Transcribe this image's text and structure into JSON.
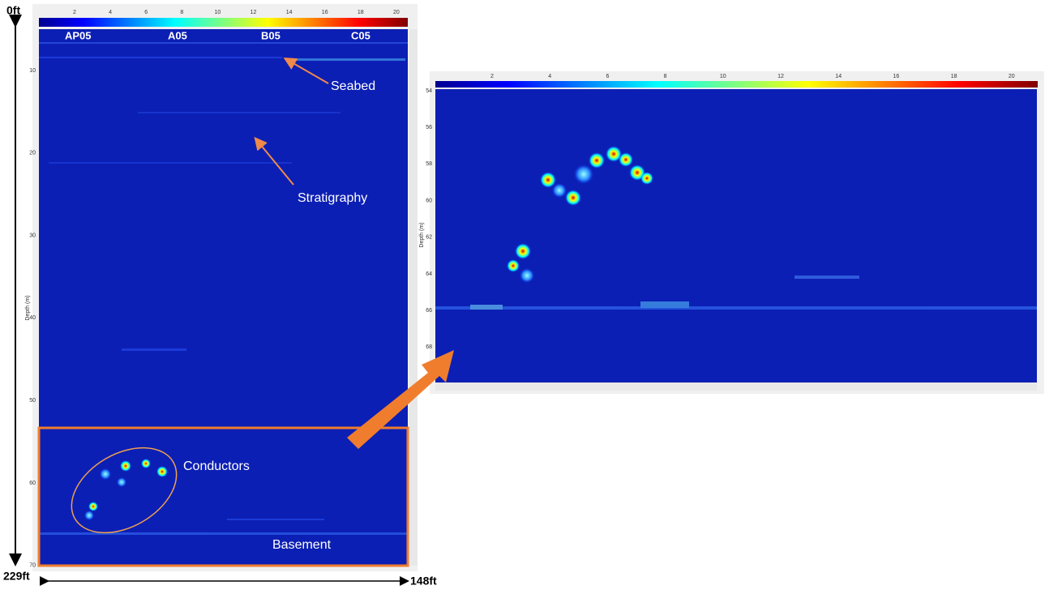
{
  "left_panel": {
    "colorbar_ticks": [
      2,
      4,
      6,
      8,
      10,
      12,
      14,
      16,
      18,
      20
    ],
    "depth_ticks": [
      10,
      20,
      30,
      40,
      50,
      60,
      70
    ],
    "axis_label": "Depth (m)",
    "line_labels": [
      "AP05",
      "A05",
      "B05",
      "C05"
    ],
    "annotations": {
      "seabed": "Seabed",
      "stratigraphy": "Stratigraphy",
      "conductors": "Conductors",
      "basement": "Basement"
    }
  },
  "right_panel": {
    "colorbar_ticks": [
      2,
      4,
      6,
      8,
      10,
      12,
      14,
      16,
      18,
      20
    ],
    "depth_ticks": [
      54,
      56,
      58,
      60,
      62,
      64,
      66,
      68
    ],
    "axis_label": "Depth (m)"
  },
  "dimensions": {
    "top": "0ft",
    "depth": "229ft",
    "width": "148ft"
  }
}
